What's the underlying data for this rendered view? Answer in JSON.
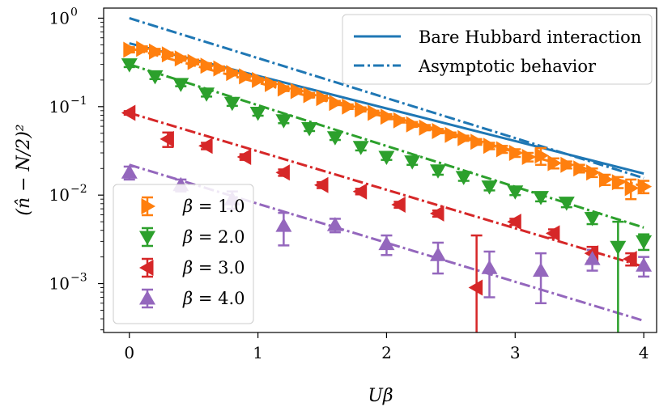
{
  "chart_data": {
    "type": "scatter",
    "title": "",
    "xlabel": "Uβ",
    "ylabel": "(n̂ − N/2)²",
    "xscale": "linear",
    "yscale": "log",
    "xlim": [
      -0.2,
      4.1
    ],
    "ylim": [
      0.00028,
      1.3
    ],
    "xticks": [
      {
        "value": 0,
        "label": "0"
      },
      {
        "value": 1,
        "label": "1"
      },
      {
        "value": 2,
        "label": "2"
      },
      {
        "value": 3,
        "label": "3"
      },
      {
        "value": 4,
        "label": "4"
      }
    ],
    "yticks": [
      {
        "value": 1,
        "base": "10",
        "exp": "0"
      },
      {
        "value": 0.1,
        "base": "10",
        "exp": "−1"
      },
      {
        "value": 0.01,
        "base": "10",
        "exp": "−2"
      },
      {
        "value": 0.001,
        "base": "10",
        "exp": "−3"
      }
    ],
    "reference_lines": [
      {
        "name": "Bare Hubbard interaction",
        "style": "solid",
        "color": "#1f77b4",
        "x": [
          0,
          4
        ],
        "y": [
          0.52,
          0.0175
        ]
      },
      {
        "name": "Asymptotic behavior",
        "style": "dashdot",
        "color": "#1f77b4",
        "x": [
          0,
          4
        ],
        "y": [
          1.0,
          0.0156
        ]
      }
    ],
    "series": [
      {
        "name": "β = 1.0",
        "beta_value": "1.0",
        "color": "#ff7f0e",
        "marker": "triangle-right",
        "fit": {
          "x": [
            0,
            4
          ],
          "y": [
            0.46,
            0.0125
          ]
        },
        "x": [
          0,
          0.1,
          0.2,
          0.3,
          0.4,
          0.5,
          0.6,
          0.7,
          0.8,
          0.9,
          1.0,
          1.1,
          1.2,
          1.3,
          1.4,
          1.5,
          1.6,
          1.7,
          1.8,
          1.9,
          2.0,
          2.1,
          2.2,
          2.3,
          2.4,
          2.5,
          2.6,
          2.7,
          2.8,
          2.9,
          3.0,
          3.1,
          3.2,
          3.3,
          3.4,
          3.5,
          3.6,
          3.7,
          3.8,
          3.9,
          4.0
        ],
        "y": [
          0.44,
          0.45,
          0.42,
          0.39,
          0.35,
          0.32,
          0.29,
          0.27,
          0.24,
          0.22,
          0.2,
          0.18,
          0.16,
          0.15,
          0.135,
          0.125,
          0.11,
          0.1,
          0.093,
          0.085,
          0.077,
          0.07,
          0.063,
          0.058,
          0.053,
          0.048,
          0.044,
          0.04,
          0.036,
          0.033,
          0.03,
          0.027,
          0.028,
          0.023,
          0.022,
          0.02,
          0.018,
          0.015,
          0.014,
          0.012,
          0.0125
        ],
        "err": [
          0.03,
          0.03,
          0.03,
          0.02,
          0.02,
          0.02,
          0.02,
          0.015,
          0.015,
          0.01,
          0.01,
          0.01,
          0.01,
          0.008,
          0.008,
          0.008,
          0.006,
          0.006,
          0.005,
          0.005,
          0.005,
          0.004,
          0.004,
          0.004,
          0.003,
          0.003,
          0.003,
          0.003,
          0.003,
          0.003,
          0.003,
          0.003,
          0.006,
          0.003,
          0.002,
          0.002,
          0.002,
          0.002,
          0.002,
          0.003,
          0.002
        ]
      },
      {
        "name": "β = 2.0",
        "beta_value": "2.0",
        "color": "#2ca02c",
        "marker": "triangle-down",
        "fit": {
          "x": [
            0,
            4
          ],
          "y": [
            0.3,
            0.0043
          ]
        },
        "x": [
          0,
          0.2,
          0.4,
          0.6,
          0.8,
          1.0,
          1.2,
          1.4,
          1.6,
          1.8,
          2.0,
          2.2,
          2.4,
          2.6,
          2.8,
          3.0,
          3.2,
          3.4,
          3.6,
          3.8,
          4.0
        ],
        "y": [
          0.3,
          0.22,
          0.18,
          0.14,
          0.11,
          0.085,
          0.07,
          0.057,
          0.045,
          0.035,
          0.027,
          0.024,
          0.019,
          0.016,
          0.0125,
          0.011,
          0.0095,
          0.0082,
          0.0055,
          0.0026,
          0.003
        ],
        "err": [
          0.02,
          0.015,
          0.01,
          0.01,
          0.008,
          0.006,
          0.005,
          0.004,
          0.003,
          0.003,
          0.002,
          0.002,
          0.002,
          0.0015,
          0.0012,
          0.001,
          0.001,
          0.0009,
          0.0008,
          0.0024,
          0.0006
        ]
      },
      {
        "name": "β = 3.0",
        "beta_value": "3.0",
        "color": "#d62728",
        "marker": "triangle-left",
        "fit": {
          "x": [
            0,
            4
          ],
          "y": [
            0.085,
            0.00155
          ]
        },
        "x": [
          0,
          0.3,
          0.6,
          0.9,
          1.2,
          1.5,
          1.8,
          2.1,
          2.4,
          2.7,
          3.0,
          3.3,
          3.6,
          3.9
        ],
        "y": [
          0.085,
          0.043,
          0.036,
          0.027,
          0.018,
          0.013,
          0.011,
          0.0078,
          0.0062,
          0.0009,
          0.005,
          0.0037,
          0.0022,
          0.0019
        ],
        "err": [
          0.004,
          0.008,
          0.003,
          0.002,
          0.0015,
          0.001,
          0.0008,
          0.0006,
          0.0005,
          0.0026,
          0.0004,
          0.0004,
          0.0004,
          0.0003
        ]
      },
      {
        "name": "β = 4.0",
        "beta_value": "4.0",
        "color": "#9467bd",
        "marker": "triangle-up",
        "fit": {
          "x": [
            0,
            4
          ],
          "y": [
            0.022,
            0.00038
          ]
        },
        "x": [
          0,
          0.4,
          0.8,
          1.2,
          1.6,
          2.0,
          2.4,
          2.8,
          3.2,
          3.6,
          4.0
        ],
        "y": [
          0.018,
          0.013,
          0.009,
          0.0045,
          0.0046,
          0.0028,
          0.0021,
          0.0015,
          0.0014,
          0.0019,
          0.0016
        ],
        "err": [
          0.003,
          0.002,
          0.002,
          0.0018,
          0.0008,
          0.0007,
          0.0008,
          0.0008,
          0.0008,
          0.0005,
          0.0004
        ]
      }
    ],
    "legends": {
      "top": [
        "Bare Hubbard interaction",
        "Asymptotic behavior"
      ],
      "bottom": [
        "β = 1.0",
        "β = 2.0",
        "β = 3.0",
        "β = 4.0"
      ]
    }
  }
}
